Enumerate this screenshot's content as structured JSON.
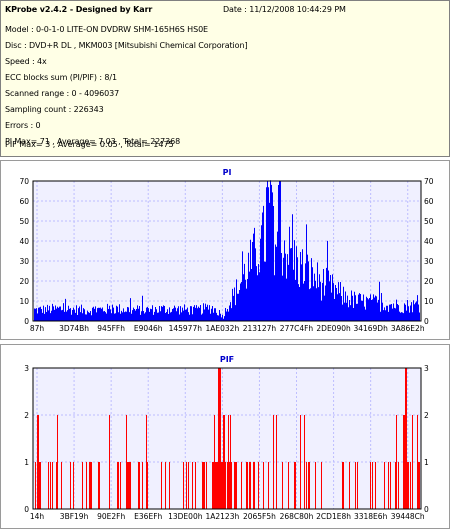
{
  "info": {
    "title": "KProbe v2.4.2 - Designed by Karr",
    "date": "Date : 11/12/2008 10:44:29 PM",
    "lines": [
      "Model : 0-0-1-0 LITE-ON DVDRW SHM-165H6S HS0E",
      "Disc : DVD+R DL , MKM003 [Mitsubishi Chemical Corporation]",
      "Speed : 4x",
      "ECC blocks sum (PI/PIF) : 8/1",
      "Scanned range : 0 - 4096037",
      "Sampling count : 226343",
      "Errors : 0",
      "PI Max= 71 , Average= 7.03 , Total= 227368",
      "PIF Max= 3 , Average= 0.05 , Total= 1475"
    ]
  },
  "colors": {
    "series": "#0000ff",
    "pif_series": "#ff0000",
    "plot_bg": "#f0f0ff",
    "grid": "#bdbdff",
    "title": "#0000cc"
  },
  "chart_data": [
    {
      "type": "bar",
      "title": "PI",
      "ylim": [
        0,
        70
      ],
      "yticks": [
        0,
        10,
        20,
        30,
        40,
        50,
        60,
        70
      ],
      "xtick_labels": [
        "87h",
        "3D74Bh",
        "945FFh",
        "E9046h",
        "145977h",
        "1AE032h",
        "213127h",
        "277C4Fh",
        "2DE090h",
        "34169Dh",
        "3A86E2h"
      ],
      "grid": true,
      "envelope": [
        [
          0,
          8
        ],
        [
          0.07,
          9
        ],
        [
          0.14,
          8
        ],
        [
          0.21,
          9
        ],
        [
          0.28,
          8
        ],
        [
          0.35,
          9
        ],
        [
          0.42,
          8
        ],
        [
          0.46,
          10
        ],
        [
          0.48,
          6
        ],
        [
          0.49,
          3
        ],
        [
          0.5,
          12
        ],
        [
          0.52,
          20
        ],
        [
          0.54,
          32
        ],
        [
          0.56,
          42
        ],
        [
          0.58,
          54
        ],
        [
          0.6,
          62
        ],
        [
          0.61,
          71
        ],
        [
          0.62,
          65
        ],
        [
          0.64,
          58
        ],
        [
          0.66,
          50
        ],
        [
          0.68,
          42
        ],
        [
          0.7,
          37
        ],
        [
          0.72,
          33
        ],
        [
          0.74,
          29
        ],
        [
          0.76,
          26
        ],
        [
          0.78,
          22
        ],
        [
          0.8,
          18
        ],
        [
          0.83,
          15
        ],
        [
          0.86,
          14
        ],
        [
          0.9,
          13
        ],
        [
          0.95,
          11
        ],
        [
          1.0,
          12
        ]
      ]
    },
    {
      "type": "bar",
      "title": "PIF",
      "ylim": [
        0,
        3
      ],
      "yticks": [
        0,
        1,
        2,
        3
      ],
      "xtick_labels": [
        "14h",
        "3BF19h",
        "90E2Fh",
        "E36EFh",
        "13DE00h",
        "1A2123h",
        "2065F5h",
        "268C80h",
        "2CD1E8h",
        "3318E6h",
        "39448Ch"
      ],
      "grid": true,
      "max_value": 3
    }
  ]
}
